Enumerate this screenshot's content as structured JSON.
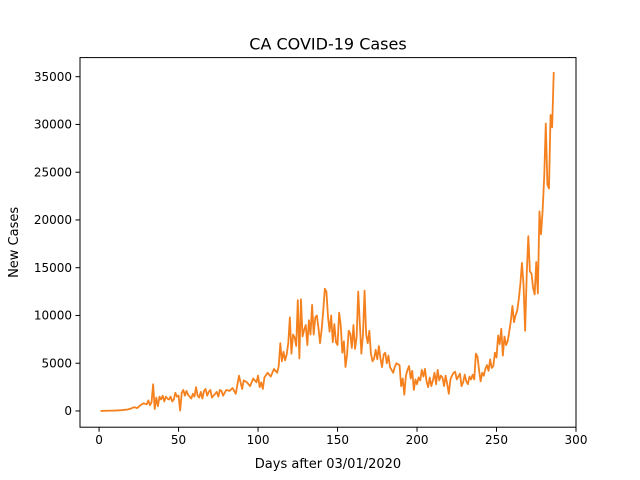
{
  "chart_data": {
    "type": "line",
    "title": "CA COVID-19 Cases",
    "xlabel": "Days after 03/01/2020",
    "ylabel": "New Cases",
    "xlim": [
      -12,
      300
    ],
    "ylim": [
      -1700,
      37000
    ],
    "x_ticks": [
      0,
      50,
      100,
      150,
      200,
      250,
      300
    ],
    "y_ticks": [
      0,
      5000,
      10000,
      15000,
      20000,
      25000,
      30000,
      35000
    ],
    "grid": false,
    "line_color": "#f5811e",
    "series": [
      {
        "points": [
          [
            1,
            0
          ],
          [
            5,
            20
          ],
          [
            10,
            40
          ],
          [
            14,
            80
          ],
          [
            18,
            150
          ],
          [
            20,
            250
          ],
          [
            22,
            400
          ],
          [
            24,
            300
          ],
          [
            26,
            600
          ],
          [
            28,
            800
          ],
          [
            30,
            700
          ],
          [
            31,
            1100
          ],
          [
            32,
            600
          ],
          [
            33,
            900
          ],
          [
            34,
            2800
          ],
          [
            35,
            200
          ],
          [
            36,
            1400
          ],
          [
            37,
            500
          ],
          [
            38,
            1500
          ],
          [
            39,
            1200
          ],
          [
            40,
            1600
          ],
          [
            41,
            1000
          ],
          [
            42,
            1500
          ],
          [
            43,
            1300
          ],
          [
            44,
            1200
          ],
          [
            45,
            1500
          ],
          [
            46,
            1000
          ],
          [
            47,
            1200
          ],
          [
            48,
            1900
          ],
          [
            49,
            1500
          ],
          [
            50,
            1600
          ],
          [
            51,
            50
          ],
          [
            52,
            1900
          ],
          [
            53,
            2200
          ],
          [
            54,
            1600
          ],
          [
            55,
            2100
          ],
          [
            56,
            1700
          ],
          [
            57,
            1500
          ],
          [
            58,
            1300
          ],
          [
            59,
            1800
          ],
          [
            60,
            1500
          ],
          [
            61,
            2500
          ],
          [
            62,
            1600
          ],
          [
            63,
            1400
          ],
          [
            64,
            2000
          ],
          [
            65,
            1300
          ],
          [
            66,
            2100
          ],
          [
            67,
            2300
          ],
          [
            68,
            1600
          ],
          [
            69,
            2000
          ],
          [
            70,
            2200
          ],
          [
            71,
            1400
          ],
          [
            72,
            1600
          ],
          [
            73,
            1800
          ],
          [
            74,
            2000
          ],
          [
            75,
            1500
          ],
          [
            76,
            2200
          ],
          [
            77,
            2100
          ],
          [
            78,
            1600
          ],
          [
            80,
            2200
          ],
          [
            82,
            2100
          ],
          [
            84,
            2400
          ],
          [
            86,
            1800
          ],
          [
            88,
            3700
          ],
          [
            90,
            2300
          ],
          [
            91,
            3200
          ],
          [
            93,
            3000
          ],
          [
            95,
            2600
          ],
          [
            97,
            3400
          ],
          [
            99,
            3000
          ],
          [
            100,
            3700
          ],
          [
            101,
            2500
          ],
          [
            102,
            3000
          ],
          [
            103,
            2300
          ],
          [
            104,
            3500
          ],
          [
            106,
            4000
          ],
          [
            108,
            3600
          ],
          [
            110,
            4400
          ],
          [
            112,
            4000
          ],
          [
            113,
            4700
          ],
          [
            114,
            7100
          ],
          [
            115,
            5200
          ],
          [
            116,
            6200
          ],
          [
            117,
            5300
          ],
          [
            118,
            5900
          ],
          [
            119,
            7100
          ],
          [
            120,
            9800
          ],
          [
            121,
            6000
          ],
          [
            122,
            8000
          ],
          [
            123,
            7700
          ],
          [
            124,
            6800
          ],
          [
            125,
            11600
          ],
          [
            126,
            5500
          ],
          [
            127,
            11700
          ],
          [
            128,
            7800
          ],
          [
            129,
            8500
          ],
          [
            130,
            9000
          ],
          [
            131,
            6900
          ],
          [
            132,
            9500
          ],
          [
            133,
            8000
          ],
          [
            134,
            11100
          ],
          [
            135,
            8000
          ],
          [
            136,
            9800
          ],
          [
            137,
            10000
          ],
          [
            138,
            8700
          ],
          [
            139,
            7100
          ],
          [
            140,
            8500
          ],
          [
            141,
            10500
          ],
          [
            142,
            12800
          ],
          [
            143,
            12500
          ],
          [
            144,
            9900
          ],
          [
            145,
            8300
          ],
          [
            146,
            10000
          ],
          [
            147,
            7200
          ],
          [
            148,
            9100
          ],
          [
            149,
            7200
          ],
          [
            150,
            6900
          ],
          [
            151,
            10300
          ],
          [
            152,
            9000
          ],
          [
            153,
            6100
          ],
          [
            154,
            7300
          ],
          [
            155,
            4600
          ],
          [
            156,
            5900
          ],
          [
            157,
            8400
          ],
          [
            158,
            8100
          ],
          [
            159,
            6600
          ],
          [
            160,
            9000
          ],
          [
            161,
            6500
          ],
          [
            162,
            7700
          ],
          [
            163,
            12500
          ],
          [
            164,
            9200
          ],
          [
            165,
            6000
          ],
          [
            166,
            8000
          ],
          [
            167,
            12600
          ],
          [
            168,
            8000
          ],
          [
            169,
            7100
          ],
          [
            170,
            8400
          ],
          [
            171,
            6000
          ],
          [
            172,
            5200
          ],
          [
            173,
            5500
          ],
          [
            174,
            6400
          ],
          [
            175,
            5400
          ],
          [
            176,
            6800
          ],
          [
            177,
            5500
          ],
          [
            178,
            4600
          ],
          [
            179,
            5900
          ],
          [
            180,
            6100
          ],
          [
            181,
            5000
          ],
          [
            182,
            5800
          ],
          [
            183,
            4600
          ],
          [
            184,
            4300
          ],
          [
            185,
            4000
          ],
          [
            186,
            4600
          ],
          [
            187,
            5000
          ],
          [
            188,
            4900
          ],
          [
            189,
            4800
          ],
          [
            190,
            2600
          ],
          [
            191,
            3400
          ],
          [
            192,
            1700
          ],
          [
            193,
            3700
          ],
          [
            194,
            4300
          ],
          [
            195,
            4700
          ],
          [
            196,
            3400
          ],
          [
            197,
            4200
          ],
          [
            198,
            2200
          ],
          [
            199,
            3300
          ],
          [
            200,
            2800
          ],
          [
            201,
            3500
          ],
          [
            202,
            3200
          ],
          [
            203,
            4300
          ],
          [
            204,
            3600
          ],
          [
            205,
            4400
          ],
          [
            206,
            3100
          ],
          [
            207,
            2500
          ],
          [
            208,
            3500
          ],
          [
            209,
            2600
          ],
          [
            210,
            3200
          ],
          [
            211,
            4000
          ],
          [
            212,
            2800
          ],
          [
            213,
            4300
          ],
          [
            214,
            3200
          ],
          [
            215,
            3700
          ],
          [
            216,
            3500
          ],
          [
            217,
            2600
          ],
          [
            218,
            3700
          ],
          [
            219,
            2800
          ],
          [
            220,
            1800
          ],
          [
            221,
            3300
          ],
          [
            222,
            3700
          ],
          [
            223,
            4000
          ],
          [
            224,
            4100
          ],
          [
            225,
            3300
          ],
          [
            226,
            3600
          ],
          [
            227,
            3900
          ],
          [
            228,
            2600
          ],
          [
            229,
            3000
          ],
          [
            230,
            3800
          ],
          [
            231,
            3100
          ],
          [
            232,
            2800
          ],
          [
            233,
            3600
          ],
          [
            234,
            3300
          ],
          [
            235,
            3800
          ],
          [
            236,
            3300
          ],
          [
            237,
            6000
          ],
          [
            238,
            5700
          ],
          [
            239,
            4300
          ],
          [
            240,
            3100
          ],
          [
            241,
            4000
          ],
          [
            242,
            3700
          ],
          [
            243,
            4400
          ],
          [
            244,
            4800
          ],
          [
            245,
            4200
          ],
          [
            246,
            5400
          ],
          [
            247,
            4500
          ],
          [
            248,
            4700
          ],
          [
            249,
            6100
          ],
          [
            250,
            5600
          ],
          [
            251,
            7900
          ],
          [
            252,
            7000
          ],
          [
            253,
            8600
          ],
          [
            254,
            5800
          ],
          [
            255,
            7800
          ],
          [
            256,
            6900
          ],
          [
            257,
            7300
          ],
          [
            258,
            8300
          ],
          [
            259,
            9400
          ],
          [
            260,
            11000
          ],
          [
            261,
            9300
          ],
          [
            262,
            10000
          ],
          [
            263,
            10500
          ],
          [
            264,
            11700
          ],
          [
            265,
            13300
          ],
          [
            266,
            15500
          ],
          [
            267,
            13200
          ],
          [
            268,
            8400
          ],
          [
            269,
            14300
          ],
          [
            270,
            18300
          ],
          [
            271,
            14600
          ],
          [
            272,
            14400
          ],
          [
            273,
            12900
          ],
          [
            274,
            12200
          ],
          [
            275,
            15600
          ],
          [
            276,
            12300
          ],
          [
            277,
            20900
          ],
          [
            278,
            18500
          ],
          [
            279,
            21000
          ],
          [
            280,
            24500
          ],
          [
            281,
            30100
          ],
          [
            282,
            23700
          ],
          [
            283,
            23300
          ],
          [
            284,
            31000
          ],
          [
            285,
            29700
          ],
          [
            286,
            35500
          ]
        ]
      }
    ]
  }
}
